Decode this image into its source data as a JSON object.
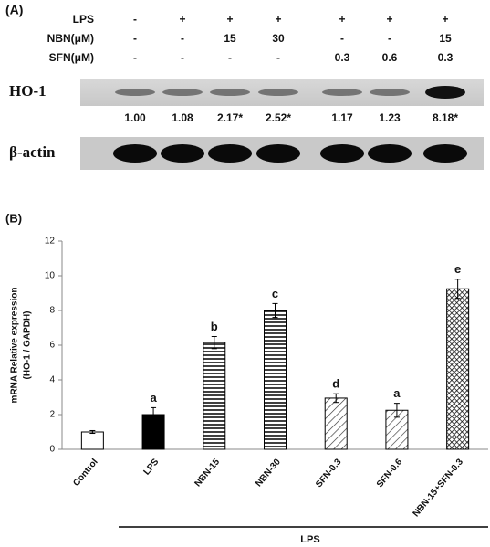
{
  "panel_a": {
    "label": "(A)",
    "rows": [
      {
        "name": "LPS",
        "cells": [
          "-",
          "+",
          "+",
          "+",
          "+",
          "+",
          "+"
        ]
      },
      {
        "name": "NBN(μM)",
        "cells": [
          "-",
          "-",
          "15",
          "30",
          "-",
          "-",
          "15"
        ]
      },
      {
        "name": "SFN(μM)",
        "cells": [
          "-",
          "-",
          "-",
          "-",
          "0.3",
          "0.6",
          "0.3"
        ]
      }
    ],
    "ho1_label": "HO-1",
    "ho1_densities": [
      "1.00",
      "1.08",
      "2.17*",
      "2.52*",
      "1.17",
      "1.23",
      "8.18*"
    ],
    "actin_label": "β-actin"
  },
  "chart_data": {
    "type": "bar",
    "panel_label": "(B)",
    "ylabel": [
      "mRNA Relative expression",
      "(HO-1 / GAPDH)"
    ],
    "categories": [
      "Control",
      "LPS",
      "NBN-15",
      "NBN-30",
      "SFN-0.3",
      "SFN-0.6",
      "NBN-15+SFN-0.3"
    ],
    "values": [
      1.0,
      2.0,
      6.15,
      8.0,
      2.95,
      2.25,
      9.25
    ],
    "errors": [
      0.08,
      0.4,
      0.35,
      0.4,
      0.25,
      0.4,
      0.55
    ],
    "letters": [
      null,
      "a",
      "b",
      "c",
      "d",
      "a",
      "e"
    ],
    "patterns": [
      "white",
      "black",
      "horizontal",
      "horizontal",
      "diagonal",
      "diagonal",
      "crosshatch"
    ],
    "group_label": "LPS",
    "ylim": [
      0,
      12
    ],
    "yticks": [
      0,
      2,
      4,
      6,
      8,
      10,
      12
    ],
    "grid": false
  }
}
